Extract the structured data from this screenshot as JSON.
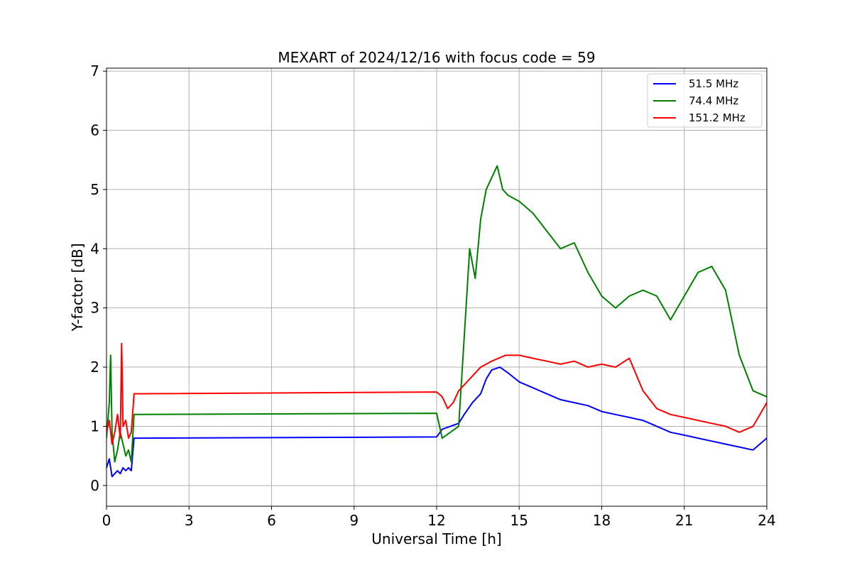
{
  "chart_data": {
    "type": "line",
    "title": "MEXART of 2024/12/16 with focus code = 59",
    "xlabel": "Universal Time [h]",
    "ylabel": "Y-factor [dB]",
    "xlim": [
      0,
      24
    ],
    "ylim": [
      -0.35,
      7.05
    ],
    "xticks": [
      0,
      3,
      6,
      9,
      12,
      15,
      18,
      21,
      24
    ],
    "yticks": [
      0,
      1,
      2,
      3,
      4,
      5,
      6,
      7
    ],
    "xtick_labels": [
      "0",
      "3",
      "6",
      "9",
      "12",
      "15",
      "18",
      "21",
      "24"
    ],
    "ytick_labels": [
      "0",
      "1",
      "2",
      "3",
      "4",
      "5",
      "6",
      "7"
    ],
    "grid": true,
    "legend_position": "top-right",
    "series": [
      {
        "name": "  51.5 MHz",
        "color": "#0000ff",
        "x": [
          0.0,
          0.1,
          0.2,
          0.3,
          0.4,
          0.5,
          0.6,
          0.7,
          0.8,
          0.9,
          1.0,
          12.0,
          12.2,
          12.5,
          12.8,
          13.0,
          13.3,
          13.6,
          13.8,
          14.0,
          14.3,
          14.6,
          15.0,
          15.5,
          16.0,
          16.5,
          17.0,
          17.5,
          18.0,
          18.5,
          19.0,
          19.5,
          20.0,
          20.5,
          21.0,
          21.5,
          22.0,
          22.5,
          23.0,
          23.5,
          24.0
        ],
        "y": [
          0.3,
          0.45,
          0.15,
          0.2,
          0.25,
          0.2,
          0.3,
          0.25,
          0.3,
          0.25,
          0.8,
          0.82,
          0.95,
          1.0,
          1.05,
          1.2,
          1.4,
          1.55,
          1.8,
          1.95,
          2.0,
          1.9,
          1.75,
          1.65,
          1.55,
          1.45,
          1.4,
          1.35,
          1.25,
          1.2,
          1.15,
          1.1,
          1.0,
          0.9,
          0.85,
          0.8,
          0.75,
          0.7,
          0.65,
          0.6,
          0.8
        ]
      },
      {
        "name": "  74.4 MHz",
        "color": "#008000",
        "x": [
          0.0,
          0.1,
          0.15,
          0.2,
          0.3,
          0.4,
          0.5,
          0.6,
          0.7,
          0.8,
          0.9,
          1.0,
          12.0,
          12.2,
          12.5,
          12.8,
          13.0,
          13.2,
          13.4,
          13.6,
          13.8,
          14.0,
          14.2,
          14.4,
          14.6,
          15.0,
          15.5,
          16.0,
          16.5,
          17.0,
          17.5,
          18.0,
          18.5,
          19.0,
          19.5,
          20.0,
          20.5,
          21.0,
          21.5,
          22.0,
          22.5,
          23.0,
          23.5,
          24.0
        ],
        "y": [
          0.8,
          1.4,
          2.2,
          0.9,
          0.4,
          0.6,
          0.9,
          0.7,
          0.5,
          0.6,
          0.4,
          1.2,
          1.22,
          0.8,
          0.9,
          1.0,
          2.5,
          4.0,
          3.5,
          4.5,
          5.0,
          5.2,
          5.4,
          5.0,
          4.9,
          4.8,
          4.6,
          4.3,
          4.0,
          4.1,
          3.6,
          3.2,
          3.0,
          3.2,
          3.3,
          3.2,
          2.8,
          3.2,
          3.6,
          3.7,
          3.3,
          2.2,
          1.6,
          1.5
        ]
      },
      {
        "name": "151.2 MHz",
        "color": "#ff0000",
        "x": [
          0.0,
          0.1,
          0.2,
          0.3,
          0.4,
          0.5,
          0.55,
          0.6,
          0.7,
          0.8,
          0.9,
          1.0,
          12.0,
          12.2,
          12.4,
          12.6,
          12.8,
          13.0,
          13.3,
          13.6,
          14.0,
          14.5,
          15.0,
          15.5,
          16.0,
          16.5,
          17.0,
          17.5,
          18.0,
          18.5,
          19.0,
          19.5,
          20.0,
          20.5,
          21.0,
          21.5,
          22.0,
          22.5,
          23.0,
          23.5,
          24.0
        ],
        "y": [
          0.9,
          1.1,
          0.7,
          0.9,
          1.2,
          0.8,
          2.4,
          1.0,
          1.1,
          0.8,
          0.9,
          1.55,
          1.58,
          1.5,
          1.3,
          1.4,
          1.6,
          1.7,
          1.85,
          2.0,
          2.1,
          2.2,
          2.2,
          2.15,
          2.1,
          2.05,
          2.1,
          2.0,
          2.05,
          2.0,
          2.15,
          1.6,
          1.3,
          1.2,
          1.15,
          1.1,
          1.05,
          1.0,
          0.9,
          1.0,
          1.4
        ]
      }
    ]
  }
}
